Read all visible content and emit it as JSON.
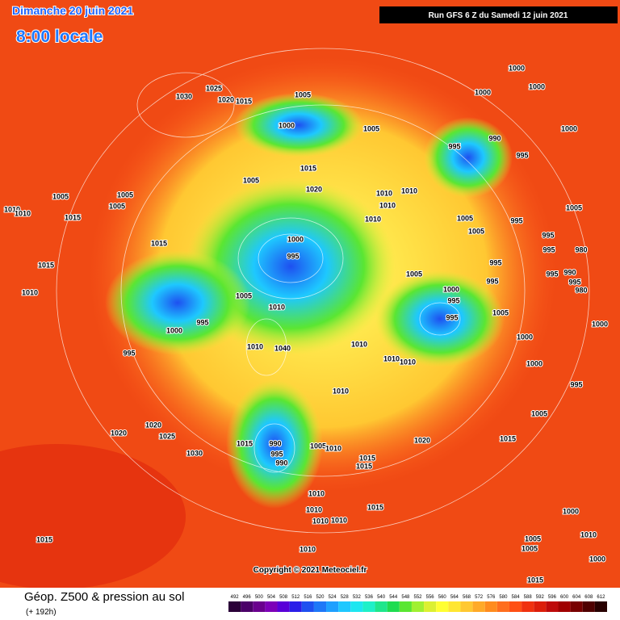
{
  "header": {
    "date": "Dimanche 20 juin 2021",
    "time": "8:00 locale",
    "run": "Run GFS 6 Z du Samedi 12 juin 2021"
  },
  "map": {
    "isobar_labels": [
      "1030",
      "1025",
      "1020",
      "1015",
      "1005",
      "1000",
      "1005",
      "1000",
      "1000",
      "1000",
      "1000",
      "995",
      "990",
      "995",
      "1015",
      "1005",
      "1020",
      "1010",
      "1010",
      "1010",
      "1005",
      "1005",
      "1005",
      "1010",
      "1010",
      "1015",
      "1010",
      "1005",
      "1005",
      "995",
      "1005",
      "1000",
      "995",
      "1015",
      "995",
      "995",
      "980",
      "1015",
      "995",
      "995",
      "990",
      "995",
      "980",
      "1005",
      "995",
      "1000",
      "1005",
      "1010",
      "995",
      "995",
      "1010",
      "1005",
      "1000",
      "995",
      "1000",
      "1000",
      "1010",
      "995",
      "1010",
      "1040",
      "1010",
      "1010",
      "1000",
      "995",
      "1010",
      "1005",
      "1020",
      "1020",
      "1025",
      "1020",
      "1015",
      "1015",
      "990",
      "995",
      "990",
      "1005",
      "1010",
      "1015",
      "1015",
      "1030",
      "1010",
      "1010",
      "1015",
      "1010",
      "1010",
      "1000",
      "1010",
      "1000",
      "1005",
      "1005",
      "1015",
      "1010",
      "1015"
    ],
    "copyright": "Copyright © 2021 Meteociel.fr"
  },
  "footer": {
    "title": "Géop. Z500 & pression au sol",
    "subtitle": "(+ 192h)",
    "legend": {
      "values": [
        492,
        496,
        500,
        504,
        508,
        512,
        516,
        520,
        524,
        528,
        532,
        536,
        540,
        544,
        548,
        552,
        556,
        560,
        564,
        568,
        572,
        576,
        580,
        584,
        588,
        592,
        596,
        600,
        604,
        608,
        612
      ],
      "colors": [
        "#2a0038",
        "#4b0068",
        "#6a008e",
        "#7d00b8",
        "#5a00d8",
        "#2a1ee8",
        "#1e50f0",
        "#1e78f8",
        "#1ea0ff",
        "#1ec8ff",
        "#1ee6f0",
        "#1ef0c8",
        "#1ee68c",
        "#1edc50",
        "#5ae632",
        "#a0f032",
        "#dcf032",
        "#ffff32",
        "#ffe632",
        "#ffc832",
        "#ffaa28",
        "#ff8c1e",
        "#ff6e1e",
        "#ff5014",
        "#f0320f",
        "#dc1e0a",
        "#be0a0a",
        "#a00000",
        "#780000",
        "#500000",
        "#280000"
      ]
    }
  }
}
